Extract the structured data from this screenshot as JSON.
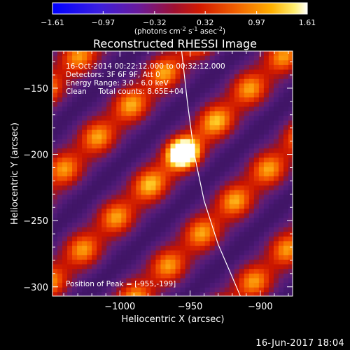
{
  "colorbar": {
    "tick_labels": [
      "-1.61",
      "-0.97",
      "-0.32",
      "0.32",
      "0.97",
      "1.61"
    ],
    "ticks": [
      -1.61,
      -0.97,
      -0.32,
      0.32,
      0.97,
      1.61
    ],
    "range": [
      -1.61,
      1.61
    ],
    "unit_main": "(photons cm",
    "unit_sup1": "-2",
    "unit_mid1": " s",
    "unit_sup2": "-1",
    "unit_mid2": " asec",
    "unit_sup3": "-2",
    "unit_end": ")"
  },
  "image": {
    "title": "Reconstructed RHESSI Image",
    "xlabel": "Heliocentric X (arcsec)",
    "ylabel": "Heliocentric Y (arcsec)",
    "annotations": [
      "16-Oct-2014 00:22:12.000  to 00:32:12.000",
      "Detectors: 3F 6F 9F, Att 0",
      "Energy Range: 3.0 - 6.0 keV",
      "Clean     Total counts: 8.65E+04"
    ],
    "peak_label": "Position of Peak = [-955,-199]",
    "peak": [
      -955,
      -199
    ]
  },
  "footer": {
    "date": "16-Jun-2017 18:04"
  },
  "chart_data": {
    "type": "heatmap",
    "title": "Reconstructed RHESSI Image",
    "xlabel": "Heliocentric X (arcsec)",
    "ylabel": "Heliocentric Y (arcsec)",
    "xlim": [
      -1048,
      -877
    ],
    "ylim": [
      -307,
      -122
    ],
    "x_ticks": [
      -1000,
      -950,
      -900
    ],
    "x_tick_labels": [
      "−1000",
      "−950",
      "−900"
    ],
    "y_ticks": [
      -150,
      -200,
      -250,
      -300
    ],
    "y_tick_labels": [
      "−150",
      "−200",
      "−250",
      "−300"
    ],
    "colorbar_range": [
      -1.61,
      1.61
    ],
    "peak": [
      -955,
      -199
    ],
    "features": "diagonal bright stripes running lower-left to upper-right with a bright compact source at the peak; limb arc crossing from top center to bottom right",
    "colors": {
      "cmap_low": "#0000ff",
      "cmap_mid": "#cc1100",
      "cmap_high": "#ffffff",
      "limb": "#ffffff",
      "background": "#000000"
    }
  }
}
